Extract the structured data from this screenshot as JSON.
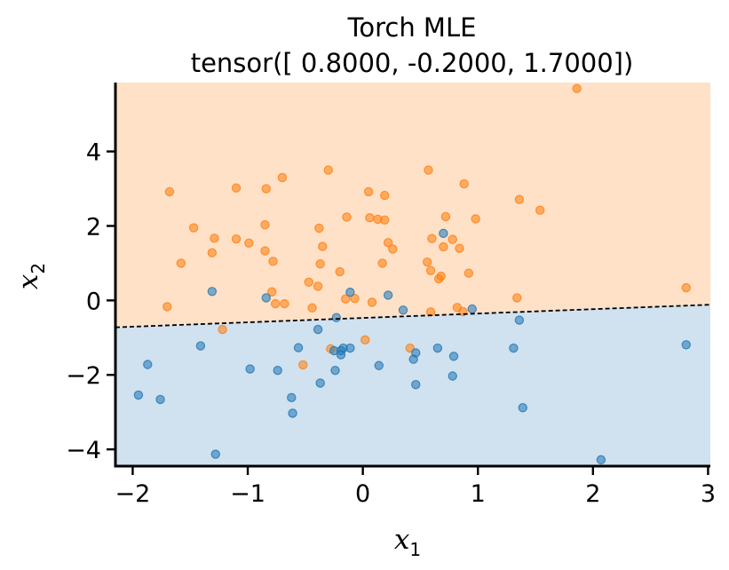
{
  "chart_data": {
    "type": "scatter",
    "title": "Torch MLE",
    "subtitle": "tensor([ 0.8000, -0.2000,  1.7000])",
    "xlabel": "x",
    "xlabel_sub": "1",
    "ylabel": "x",
    "ylabel_sub": "2",
    "xlim": [
      -2.15,
      3.02
    ],
    "ylim": [
      -4.45,
      5.85
    ],
    "xticks": [
      -2,
      -1,
      0,
      1,
      2,
      3
    ],
    "xtick_labels": [
      "−2",
      "−1",
      "0",
      "1",
      "2",
      "3"
    ],
    "yticks": [
      -4,
      -2,
      0,
      2,
      4
    ],
    "ytick_labels": [
      "−4",
      "−2",
      "0",
      "2",
      "4"
    ],
    "grid": false,
    "decision_boundary": {
      "weights": [
        0.8,
        -0.2,
        1.7
      ],
      "style": "dashed",
      "color": "#000000"
    },
    "regions": [
      {
        "side": "above",
        "color": "#ffe1c8"
      },
      {
        "side": "below",
        "color": "#d0e1ef"
      }
    ],
    "series": [
      {
        "color": "#ff7f0e",
        "points": [
          [
            -1.68,
            2.92
          ],
          [
            -1.1,
            3.02
          ],
          [
            -0.84,
            3.0
          ],
          [
            -0.7,
            3.3
          ],
          [
            -0.3,
            3.5
          ],
          [
            0.05,
            2.92
          ],
          [
            0.19,
            2.82
          ],
          [
            0.57,
            3.5
          ],
          [
            0.88,
            3.13
          ],
          [
            -1.47,
            1.95
          ],
          [
            -1.29,
            1.67
          ],
          [
            -1.1,
            1.65
          ],
          [
            -0.99,
            1.54
          ],
          [
            -0.85,
            2.03
          ],
          [
            -0.38,
            1.94
          ],
          [
            -0.14,
            2.24
          ],
          [
            0.06,
            2.22
          ],
          [
            0.13,
            2.18
          ],
          [
            0.19,
            2.16
          ],
          [
            0.72,
            2.25
          ],
          [
            0.98,
            2.19
          ],
          [
            1.36,
            2.71
          ],
          [
            1.54,
            2.42
          ],
          [
            -1.58,
            1.0
          ],
          [
            -1.31,
            1.28
          ],
          [
            -0.85,
            1.33
          ],
          [
            -0.78,
            1.05
          ],
          [
            -0.35,
            1.45
          ],
          [
            -0.37,
            0.98
          ],
          [
            0.22,
            1.55
          ],
          [
            0.26,
            1.38
          ],
          [
            0.17,
            1.0
          ],
          [
            0.6,
            1.66
          ],
          [
            0.7,
            1.44
          ],
          [
            0.78,
            1.64
          ],
          [
            0.84,
            1.4
          ],
          [
            0.56,
            1.03
          ],
          [
            0.59,
            0.8
          ],
          [
            0.68,
            0.65
          ],
          [
            0.66,
            0.58
          ],
          [
            0.92,
            0.73
          ],
          [
            -0.2,
            0.77
          ],
          [
            -0.47,
            0.49
          ],
          [
            -0.39,
            0.38
          ],
          [
            -0.79,
            0.23
          ],
          [
            -0.76,
            -0.09
          ],
          [
            -0.68,
            -0.09
          ],
          [
            -0.44,
            -0.2
          ],
          [
            -0.15,
            0.04
          ],
          [
            -0.07,
            0.05
          ],
          [
            0.08,
            -0.05
          ],
          [
            -1.7,
            -0.17
          ],
          [
            0.59,
            -0.31
          ],
          [
            0.82,
            -0.19
          ],
          [
            0.87,
            -0.3
          ],
          [
            1.34,
            0.07
          ],
          [
            2.81,
            0.34
          ],
          [
            1.86,
            5.69
          ],
          [
            -1.22,
            -0.78
          ],
          [
            -0.28,
            -1.3
          ],
          [
            0.02,
            -1.06
          ],
          [
            0.41,
            -1.28
          ],
          [
            -0.52,
            -1.73
          ]
        ]
      },
      {
        "color": "#1f77b4",
        "points": [
          [
            -1.31,
            0.24
          ],
          [
            -0.84,
            0.07
          ],
          [
            -0.11,
            0.22
          ],
          [
            0.22,
            0.14
          ],
          [
            0.35,
            -0.26
          ],
          [
            0.7,
            1.8
          ],
          [
            0.95,
            -0.23
          ],
          [
            1.36,
            -0.53
          ],
          [
            -0.23,
            -0.46
          ],
          [
            -0.39,
            -0.78
          ],
          [
            -1.41,
            -1.22
          ],
          [
            -0.56,
            -1.27
          ],
          [
            -0.25,
            -1.35
          ],
          [
            -0.19,
            -1.35
          ],
          [
            -0.17,
            -1.28
          ],
          [
            -0.11,
            -1.28
          ],
          [
            -0.19,
            -1.46
          ],
          [
            0.46,
            -1.41
          ],
          [
            0.44,
            -1.58
          ],
          [
            0.65,
            -1.28
          ],
          [
            0.79,
            -1.5
          ],
          [
            1.31,
            -1.28
          ],
          [
            2.81,
            -1.19
          ],
          [
            0.14,
            -1.75
          ],
          [
            -0.98,
            -1.84
          ],
          [
            -0.74,
            -1.88
          ],
          [
            -0.24,
            -1.88
          ],
          [
            0.78,
            -2.03
          ],
          [
            -1.87,
            -1.72
          ],
          [
            -1.95,
            -2.54
          ],
          [
            -1.76,
            -2.66
          ],
          [
            -0.62,
            -2.61
          ],
          [
            -0.37,
            -2.22
          ],
          [
            0.46,
            -2.26
          ],
          [
            1.39,
            -2.88
          ],
          [
            -0.61,
            -3.03
          ],
          [
            -1.28,
            -4.13
          ],
          [
            2.07,
            -4.28
          ]
        ]
      }
    ]
  }
}
